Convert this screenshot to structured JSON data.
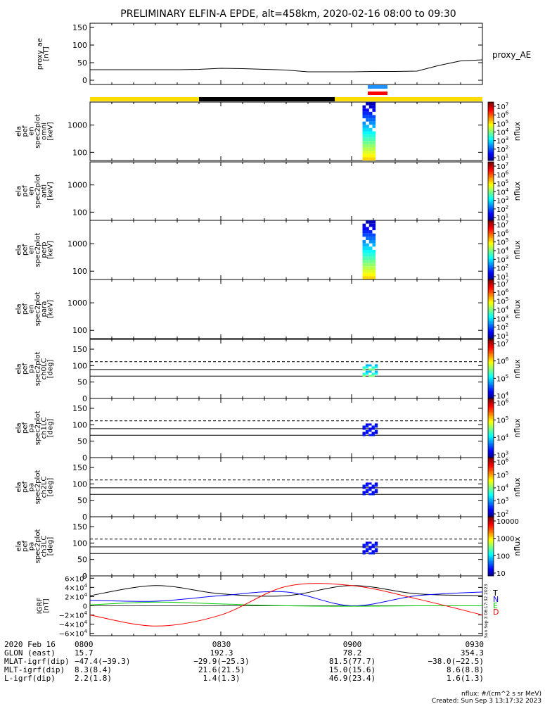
{
  "title": "PRELIMINARY ELFIN-A EPDE, alt=458km, 2020-02-16 08:00 to 09:30",
  "colors": {
    "bar_yellow": "#ffdd00",
    "bar_black": "#000000",
    "bar_blue": "#1e90ff",
    "bar_red": "#ff0000"
  },
  "chart_data": [
    {
      "type": "line",
      "panel": "proxy_ae",
      "ylabel": [
        "proxy_ae",
        "[nT]"
      ],
      "legend": "proxy_AE",
      "ylim": [
        0,
        150
      ],
      "yticks": [
        "150",
        "100",
        "50",
        "0"
      ],
      "x": [
        0,
        5,
        10,
        15,
        20,
        25,
        30,
        35,
        40,
        45,
        50,
        55,
        60,
        65,
        70,
        75,
        80,
        85,
        90
      ],
      "values": [
        30,
        30,
        30,
        30,
        30,
        31,
        34,
        33,
        31,
        29,
        24,
        24,
        24,
        25,
        25,
        26,
        42,
        55,
        58
      ]
    },
    {
      "type": "heatmap",
      "panel": "spec_omni",
      "ylabel": [
        "ela",
        "pef",
        "en",
        "spec2plot",
        "omni",
        "[keV]"
      ],
      "yticks": [
        "1000",
        "100"
      ],
      "colorbar": {
        "label": "nflux",
        "ticks": [
          "10^7",
          "10^6",
          "10^5",
          "10^4",
          "10^3",
          "10^2",
          "10^1"
        ]
      }
    },
    {
      "type": "heatmap",
      "panel": "spec_anti",
      "ylabel": [
        "ela",
        "pef",
        "en",
        "spec2plot",
        "anti",
        "[keV]"
      ],
      "yticks": [
        "1000",
        "100"
      ],
      "colorbar": {
        "label": "nflux",
        "ticks": [
          "10^7",
          "10^6",
          "10^5",
          "10^4",
          "10^3",
          "10^2",
          "10^1"
        ]
      }
    },
    {
      "type": "heatmap",
      "panel": "spec_perp",
      "ylabel": [
        "ela",
        "pef",
        "en",
        "spec2plot",
        "perp",
        "[keV]"
      ],
      "yticks": [
        "1000",
        "100"
      ],
      "colorbar": {
        "label": "nflux",
        "ticks": [
          "10^7",
          "10^6",
          "10^5",
          "10^4",
          "10^3",
          "10^2",
          "10^1"
        ]
      }
    },
    {
      "type": "heatmap",
      "panel": "spec_para",
      "ylabel": [
        "ela",
        "pef",
        "en",
        "spec2plot",
        "para",
        "[keV]"
      ],
      "yticks": [
        "1000",
        "100"
      ],
      "colorbar": {
        "label": "nflux",
        "ticks": [
          "10^7",
          "10^6",
          "10^5",
          "10^4",
          "10^3",
          "10^2",
          "10^1"
        ]
      }
    },
    {
      "type": "heatmap",
      "panel": "pa_ch0",
      "ylabel": [
        "ela",
        "pef",
        "pa",
        "spec2plot",
        "ch0LC",
        "[deg]"
      ],
      "yticks": [
        "150",
        "100",
        "50",
        "0"
      ],
      "ylim": [
        0,
        180
      ],
      "lines": {
        "solid": [
          88,
          68
        ],
        "dashed": [
          112
        ]
      },
      "colorbar": {
        "label": "nflux",
        "ticks": [
          "10^7",
          "10^6",
          "10^5",
          "10^4"
        ]
      }
    },
    {
      "type": "heatmap",
      "panel": "pa_ch1",
      "ylabel": [
        "ela",
        "pef",
        "pa",
        "spec2plot",
        "ch1LC",
        "[deg]"
      ],
      "yticks": [
        "150",
        "100",
        "50",
        "0"
      ],
      "ylim": [
        0,
        180
      ],
      "lines": {
        "solid": [
          88,
          68
        ],
        "dashed": [
          112
        ]
      },
      "colorbar": {
        "label": "nflux",
        "ticks": [
          "10^6",
          "10^5",
          "10^4",
          "10^3"
        ]
      }
    },
    {
      "type": "heatmap",
      "panel": "pa_ch2",
      "ylabel": [
        "ela",
        "pef",
        "pa",
        "spec2plot",
        "ch2LC",
        "[deg]"
      ],
      "yticks": [
        "150",
        "100",
        "50",
        "0"
      ],
      "ylim": [
        0,
        180
      ],
      "lines": {
        "solid": [
          88,
          68
        ],
        "dashed": [
          112
        ]
      },
      "colorbar": {
        "label": "nflux",
        "ticks": [
          "10^6",
          "10^5",
          "10^4",
          "10^3",
          "10^2"
        ]
      }
    },
    {
      "type": "heatmap",
      "panel": "pa_ch3",
      "ylabel": [
        "ela",
        "pef",
        "pa",
        "spec2plot",
        "ch3LC",
        "[deg]"
      ],
      "yticks": [
        "150",
        "100",
        "50",
        "0"
      ],
      "ylim": [
        0,
        180
      ],
      "lines": {
        "solid": [
          88,
          68
        ],
        "dashed": [
          112
        ]
      },
      "colorbar": {
        "label": "nflux",
        "ticks": [
          "10000",
          "1000",
          "100",
          "10"
        ]
      }
    },
    {
      "type": "line",
      "panel": "igrf",
      "ylabel": [
        "IGRF",
        "[nT]"
      ],
      "ylim": [
        -65000,
        65000
      ],
      "yticks": [
        "6×10^4",
        "4×10^4",
        "2×10^4",
        "0",
        "−2×10^4",
        "−4×10^4",
        "−6×10^4"
      ],
      "series": [
        {
          "name": "T",
          "color": "#000000",
          "x": [
            0,
            15,
            30,
            45,
            60,
            75,
            90
          ],
          "values": [
            22000,
            44000,
            26000,
            22000,
            44000,
            26000,
            22000
          ]
        },
        {
          "name": "N",
          "color": "#0000ff",
          "x": [
            0,
            15,
            30,
            45,
            60,
            75,
            90
          ],
          "values": [
            12000,
            10000,
            22000,
            30000,
            0,
            22000,
            30000
          ]
        },
        {
          "name": "E",
          "color": "#00cc00",
          "x": [
            0,
            15,
            30,
            45,
            60,
            75,
            90
          ],
          "values": [
            2000,
            8000,
            4000,
            0,
            -1000,
            0,
            0
          ]
        },
        {
          "name": "D",
          "color": "#ff0000",
          "x": [
            0,
            15,
            30,
            45,
            60,
            75,
            90
          ],
          "values": [
            -20000,
            -44000,
            -20000,
            42000,
            44000,
            15000,
            -20000
          ]
        }
      ]
    }
  ],
  "xaxis": {
    "rows": [
      {
        "label": "2020 Feb 16",
        "values": [
          "0800",
          "0830",
          "0900",
          "0930"
        ]
      },
      {
        "label": "GLON (east)",
        "values": [
          "15.7",
          "192.3",
          "78.2",
          "354.3"
        ]
      },
      {
        "label": "MLAT-igrf(dip)",
        "values": [
          "−47.4(−39.3)",
          "−29.9(−25.3)",
          "81.5(77.7)",
          "−38.0(−22.5)"
        ]
      },
      {
        "label": "MLT-igrf(dip)",
        "values": [
          "8.3(8.4)",
          "21.6(21.5)",
          "15.0(15.6)",
          "8.6(8.8)"
        ]
      },
      {
        "label": "L-igrf(dip)",
        "values": [
          "2.2(1.8)",
          "1.4(1.3)",
          "46.9(23.4)",
          "1.6(1.3)"
        ]
      }
    ]
  },
  "footer": {
    "units": "nflux: #/(cm^2 s sr MeV)",
    "created": "Created: Sun Sep  3 13:17:32 2023"
  },
  "side_stamp": "Sun Sep  3 08:17:32 2023"
}
